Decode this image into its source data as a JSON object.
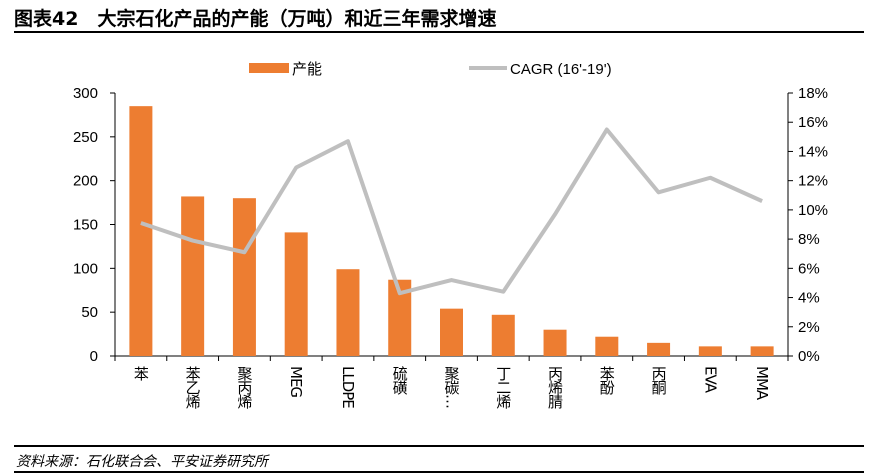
{
  "title": "图表42　大宗石化产品的产能（万吨）和近三年需求增速",
  "source": "资料来源：石化联合会、平安证券研究所",
  "colors": {
    "bar": "#ED7D31",
    "line": "#BFBFBF"
  },
  "chart_data": {
    "type": "bar+line",
    "categories": [
      "苯",
      "苯乙烯",
      "聚丙烯",
      "MEG",
      "LLDPE",
      "硫磺",
      "聚碳…",
      "丁二烯",
      "丙烯腈",
      "苯酚",
      "丙酮",
      "EVA",
      "MMA"
    ],
    "series": [
      {
        "name": "产能",
        "type": "bar",
        "axis": "left",
        "values": [
          285,
          182,
          180,
          141,
          99,
          87,
          54,
          47,
          30,
          22,
          15,
          11,
          11
        ]
      },
      {
        "name": "CAGR (16'-19')",
        "type": "line",
        "axis": "right",
        "values": [
          9.1,
          7.9,
          7.1,
          12.9,
          14.7,
          4.3,
          5.2,
          4.4,
          9.7,
          15.5,
          11.2,
          12.2,
          10.6
        ]
      }
    ],
    "left_axis": {
      "ylim": [
        0,
        300
      ],
      "ticks": [
        "0",
        "50",
        "100",
        "150",
        "200",
        "250",
        "300"
      ]
    },
    "right_axis": {
      "ylim": [
        0,
        18
      ],
      "ticks": [
        "0%",
        "2%",
        "4%",
        "6%",
        "8%",
        "10%",
        "12%",
        "14%",
        "16%",
        "18%"
      ]
    },
    "legend": {
      "placement": "top",
      "items": [
        "产能",
        "CAGR (16'-19')"
      ]
    },
    "grid": false
  }
}
